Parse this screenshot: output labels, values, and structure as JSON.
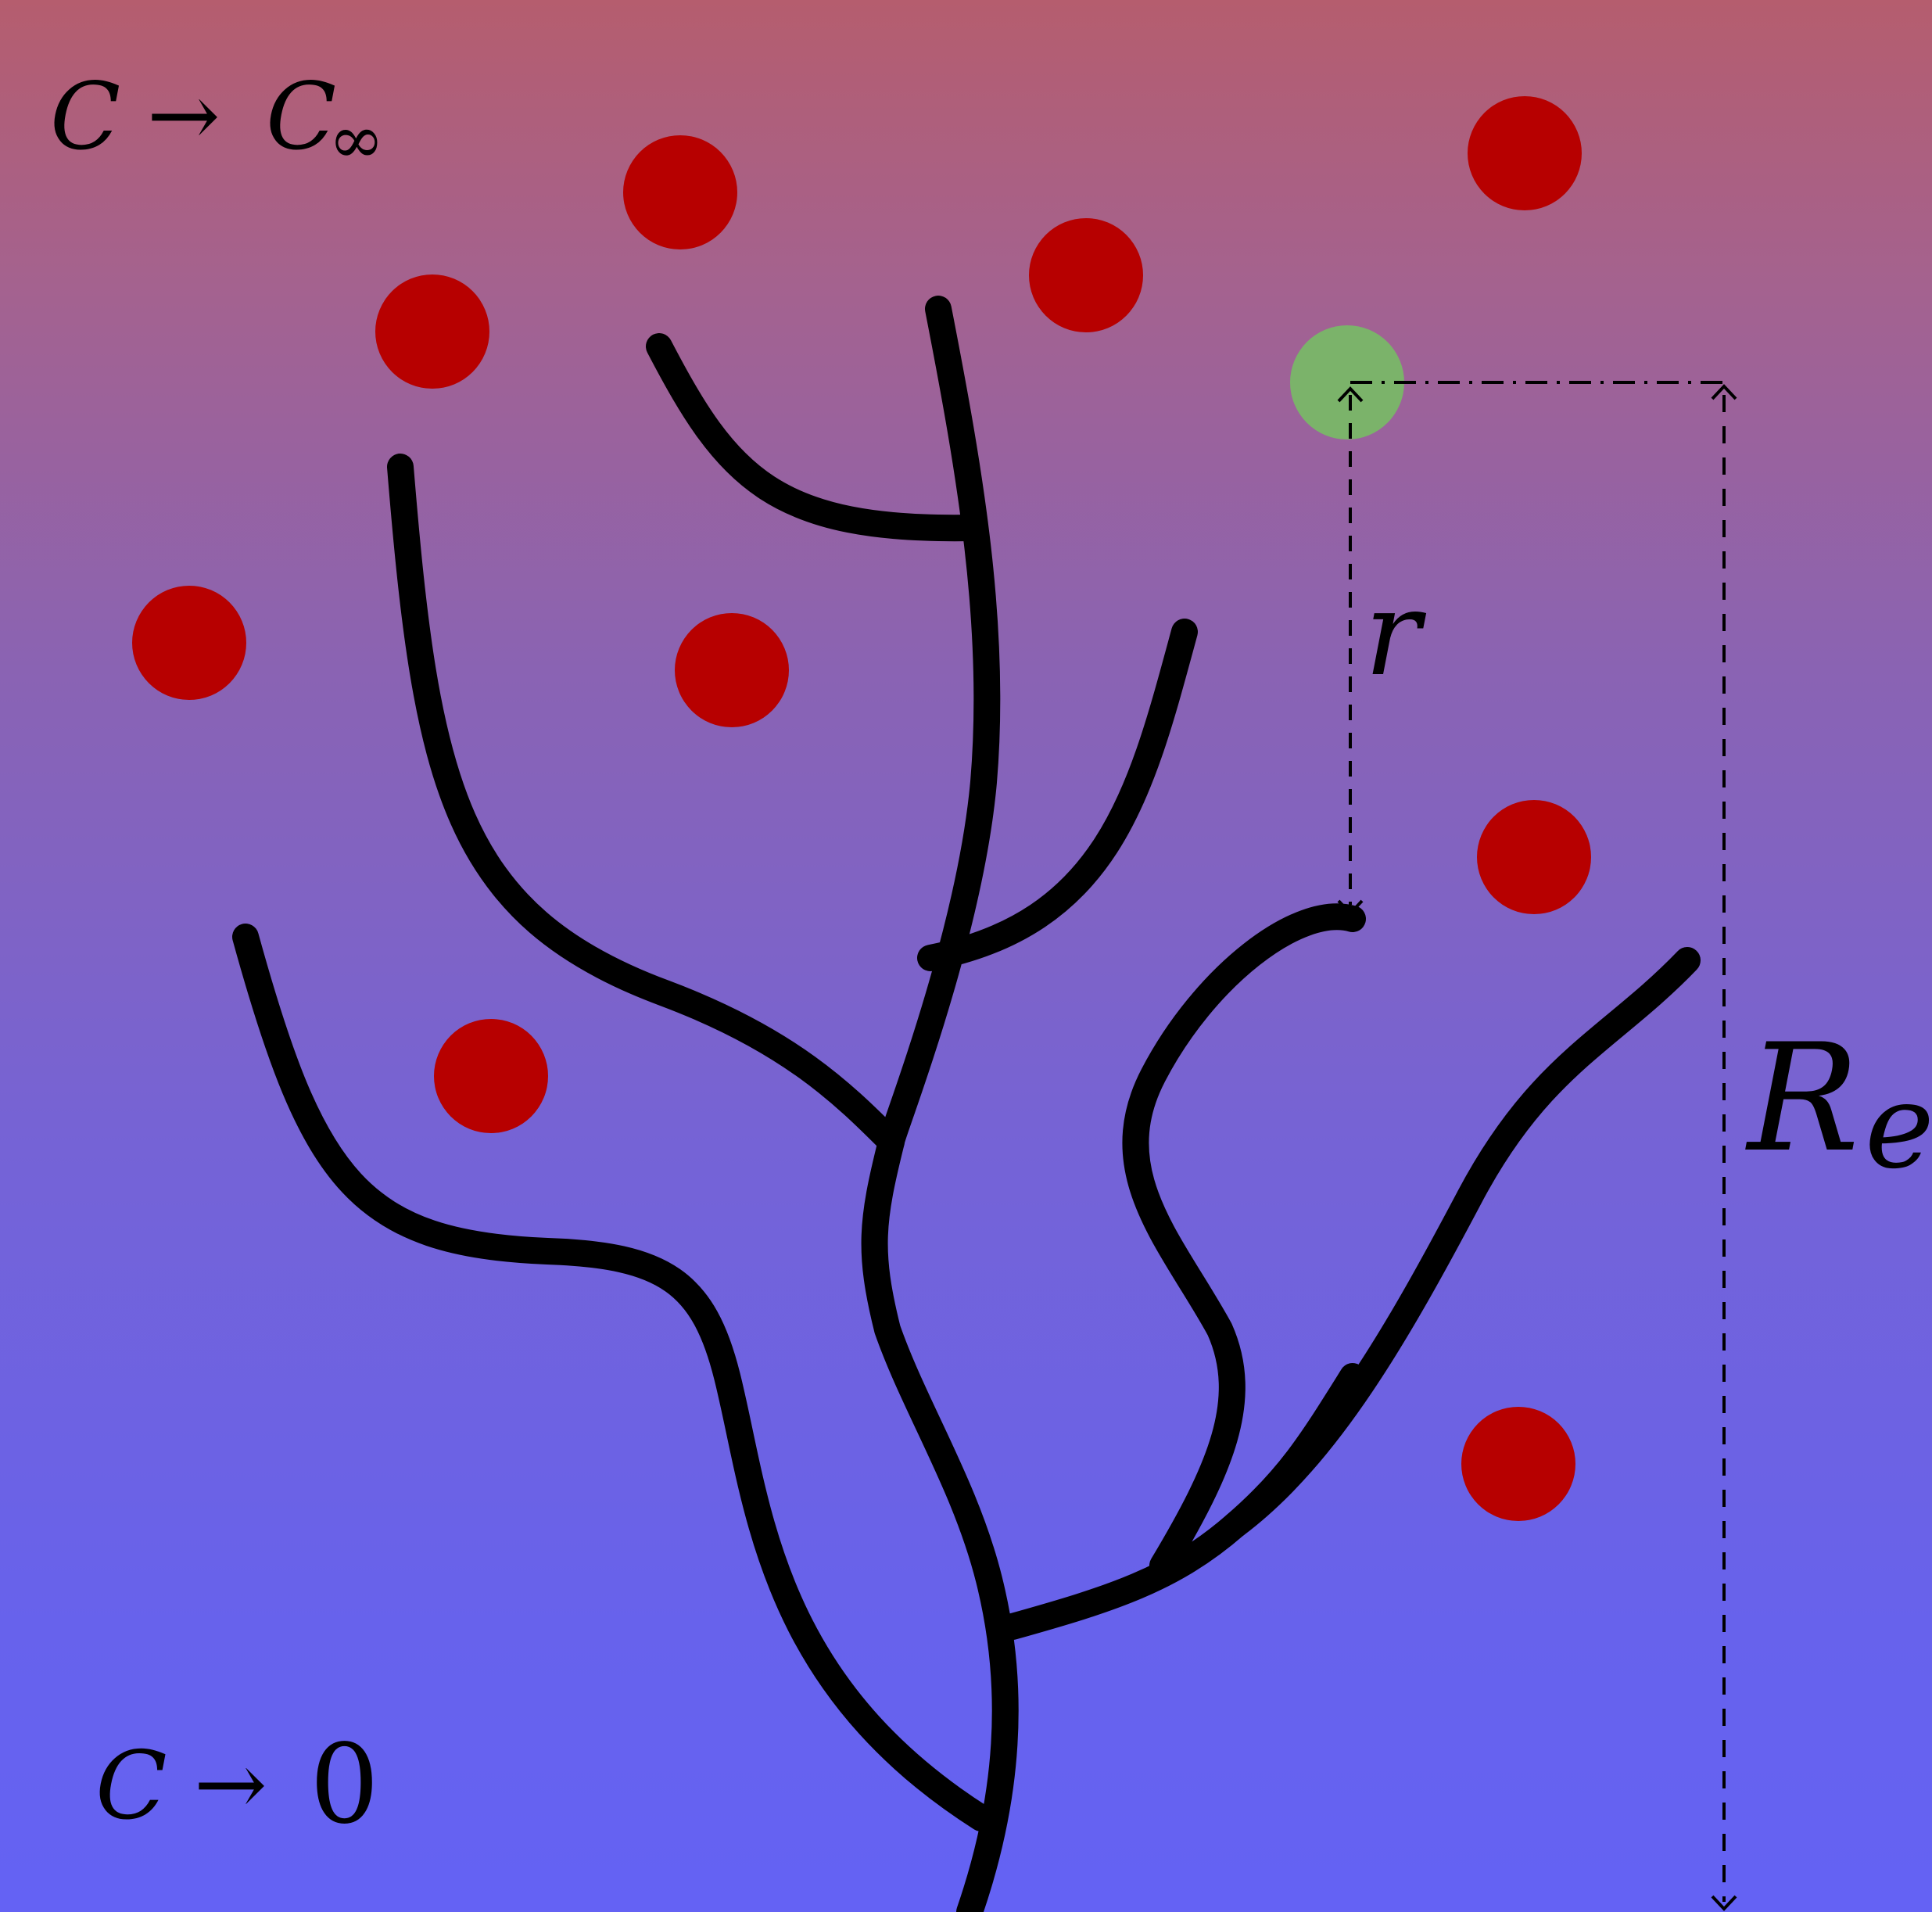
{
  "labels": {
    "top_left_C": "C",
    "top_left_arrow": "→",
    "top_left_Cinf_base": "C",
    "top_left_Cinf_sub": "∞",
    "bottom_left_C": "C",
    "bottom_left_arrow": "→",
    "bottom_left_zero": "0",
    "r": "r",
    "Re_base": "R",
    "Re_sub": "e"
  },
  "colors": {
    "background_top": "#b55d6e",
    "background_mid": "#7a64c8",
    "background_bottom": "#6462f4",
    "cells": "#b70000",
    "target_cell": "#7bb36a",
    "vessels": "#000000",
    "dimension_lines": "#000000"
  }
}
